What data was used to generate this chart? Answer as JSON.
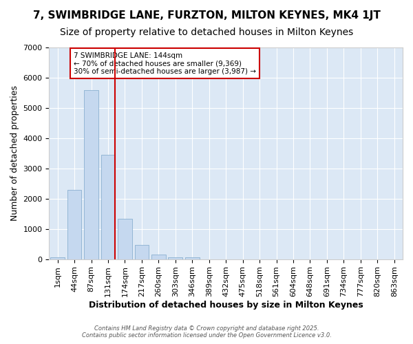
{
  "title": "7, SWIMBRIDGE LANE, FURZTON, MILTON KEYNES, MK4 1JT",
  "subtitle": "Size of property relative to detached houses in Milton Keynes",
  "xlabel": "Distribution of detached houses by size in Milton Keynes",
  "ylabel": "Number of detached properties",
  "bar_labels": [
    "1sqm",
    "44sqm",
    "87sqm",
    "131sqm",
    "174sqm",
    "217sqm",
    "260sqm",
    "303sqm",
    "346sqm",
    "389sqm",
    "432sqm",
    "475sqm",
    "518sqm",
    "561sqm",
    "604sqm",
    "648sqm",
    "691sqm",
    "734sqm",
    "777sqm",
    "820sqm",
    "863sqm"
  ],
  "bar_values": [
    70,
    2300,
    5600,
    3450,
    1330,
    480,
    160,
    70,
    50,
    0,
    0,
    0,
    0,
    0,
    0,
    0,
    0,
    0,
    0,
    0,
    0
  ],
  "bar_color": "#c5d8ef",
  "bar_edge_color": "#8ab0d0",
  "vline_color": "#cc0000",
  "annotation_text": "7 SWIMBRIDGE LANE: 144sqm\n← 70% of detached houses are smaller (9,369)\n30% of semi-detached houses are larger (3,987) →",
  "annotation_box_color": "#ffffff",
  "annotation_box_edge": "#cc0000",
  "ylim": [
    0,
    7000
  ],
  "yticks": [
    0,
    1000,
    2000,
    3000,
    4000,
    5000,
    6000,
    7000
  ],
  "plot_bg_color": "#dce8f5",
  "fig_bg_color": "#ffffff",
  "footer_line1": "Contains HM Land Registry data © Crown copyright and database right 2025.",
  "footer_line2": "Contains public sector information licensed under the Open Government Licence v3.0.",
  "title_fontsize": 11,
  "subtitle_fontsize": 10,
  "tick_fontsize": 8,
  "ylabel_fontsize": 9,
  "xlabel_fontsize": 9,
  "footer_fontsize": 6
}
